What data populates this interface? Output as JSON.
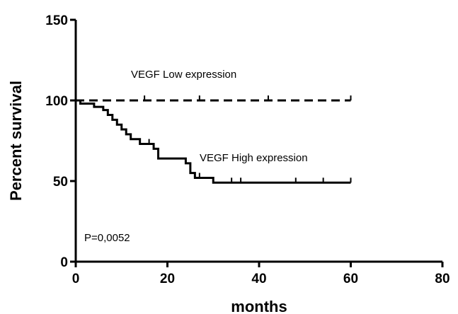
{
  "chart_data": {
    "type": "line",
    "title": "",
    "xlabel": "months",
    "ylabel": "Percent survival",
    "xlim": [
      0,
      80
    ],
    "ylim": [
      0,
      150
    ],
    "xticks": [
      0,
      20,
      40,
      60,
      80
    ],
    "yticks": [
      0,
      50,
      100,
      150
    ],
    "grid": false,
    "series": [
      {
        "name": "VEGF Low expression",
        "style": "dashed",
        "step": true,
        "points": [
          [
            0,
            100
          ],
          [
            60,
            100
          ]
        ],
        "censored": [
          15,
          27,
          42,
          60
        ]
      },
      {
        "name": "VEGF High expression",
        "style": "solid",
        "step": true,
        "points": [
          [
            0,
            100
          ],
          [
            1,
            98
          ],
          [
            4,
            96
          ],
          [
            6,
            94
          ],
          [
            7,
            91
          ],
          [
            8,
            88
          ],
          [
            9,
            85
          ],
          [
            10,
            82
          ],
          [
            11,
            79
          ],
          [
            12,
            76
          ],
          [
            14,
            73
          ],
          [
            17,
            70
          ],
          [
            18,
            64
          ],
          [
            24,
            61
          ],
          [
            25,
            55
          ],
          [
            26,
            52
          ],
          [
            30,
            49
          ],
          [
            60,
            49
          ]
        ],
        "censored": [
          16,
          27,
          34,
          36,
          48,
          54,
          60
        ]
      }
    ],
    "annotations": [
      "P=0,0052"
    ]
  }
}
